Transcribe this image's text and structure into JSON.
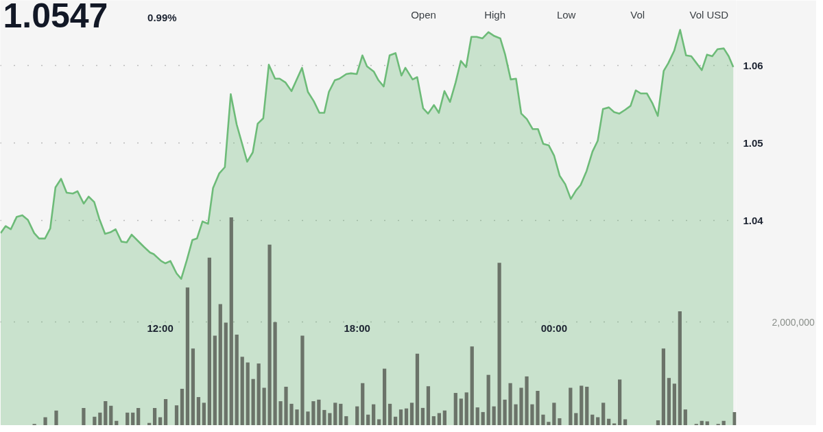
{
  "chart_data": {
    "type": "area",
    "title": "1.0547",
    "subtitle": "0.99%",
    "annotations": [
      "Open",
      "High",
      "Low",
      "Vol",
      "Vol USD"
    ],
    "xlim": [
      7.13,
      29.55
    ],
    "xticks": [
      {
        "value": 12,
        "label": "12:00"
      },
      {
        "value": 18,
        "label": "18:00"
      },
      {
        "value": 24,
        "label": "00:00"
      }
    ],
    "ylim": [
      1.0136,
      1.0684
    ],
    "yticks": [
      1.04,
      1.05,
      1.06
    ],
    "y2lim": [
      0,
      8230000
    ],
    "y2ticks": [
      {
        "value": 2000000,
        "label": "2,000,000"
      }
    ],
    "grid": "y",
    "series": [
      {
        "color": "#6dbb78",
        "x": [
          7.14,
          7.29,
          7.45,
          7.63,
          7.8,
          7.97,
          8.16,
          8.31,
          8.49,
          8.65,
          8.81,
          8.98,
          9.15,
          9.34,
          9.48,
          9.67,
          9.82,
          9.99,
          10.14,
          10.32,
          10.48,
          10.64,
          10.82,
          10.98,
          11.13,
          11.32,
          11.51,
          11.69,
          11.8,
          12.03,
          12.16,
          12.31,
          12.5,
          12.64,
          12.81,
          12.98,
          13.12,
          13.29,
          13.46,
          13.61,
          13.8,
          13.97,
          14.15,
          14.33,
          14.65,
          14.82,
          14.97,
          15.14,
          15.31,
          15.5,
          15.64,
          15.82,
          16.0,
          16.32,
          16.5,
          16.68,
          16.85,
          17.0,
          17.14,
          17.32,
          17.46,
          17.67,
          17.81,
          17.99,
          18.16,
          18.3,
          18.51,
          18.65,
          18.81,
          18.99,
          19.17,
          19.35,
          19.47,
          19.69,
          19.83,
          20.01,
          20.16,
          20.34,
          20.49,
          20.66,
          20.83,
          21.0,
          21.16,
          21.32,
          21.48,
          21.64,
          21.82,
          22.0,
          22.18,
          22.36,
          22.51,
          22.68,
          22.84,
          23.0,
          23.17,
          23.35,
          23.51,
          23.67,
          23.84,
          24.0,
          24.17,
          24.34,
          24.51,
          24.67,
          24.81,
          24.99,
          25.17,
          25.33,
          25.49,
          25.67,
          25.83,
          25.99,
          26.17,
          26.33,
          26.49,
          26.64,
          26.83,
          27.0,
          27.16,
          27.34,
          27.48,
          27.66,
          27.84,
          28.02,
          28.18,
          28.34,
          28.5,
          28.66,
          28.82,
          28.98,
          29.17,
          29.32,
          29.46
        ],
        "values": [
          1.0384,
          1.0393,
          1.0389,
          1.0405,
          1.0407,
          1.0401,
          1.0384,
          1.0377,
          1.0377,
          1.039,
          1.0443,
          1.0454,
          1.0436,
          1.0435,
          1.0438,
          1.0422,
          1.0431,
          1.0424,
          1.0403,
          1.0383,
          1.0385,
          1.0389,
          1.0373,
          1.0372,
          1.0382,
          1.0374,
          1.0366,
          1.0359,
          1.0357,
          1.0348,
          1.0345,
          1.0348,
          1.0332,
          1.0325,
          1.0349,
          1.0375,
          1.0377,
          1.0399,
          1.0396,
          1.0442,
          1.0461,
          1.0469,
          1.0563,
          1.0524,
          1.0476,
          1.0488,
          1.0525,
          1.0532,
          1.0601,
          1.0583,
          1.0583,
          1.0578,
          1.0567,
          1.0597,
          1.0566,
          1.0554,
          1.0539,
          1.0539,
          1.0566,
          1.0581,
          1.0583,
          1.0589,
          1.059,
          1.0589,
          1.0613,
          1.0599,
          1.0592,
          1.0581,
          1.0573,
          1.0613,
          1.0616,
          1.0587,
          1.0597,
          1.0582,
          1.0585,
          1.0545,
          1.0538,
          1.0549,
          1.0539,
          1.0567,
          1.0553,
          1.0578,
          1.0606,
          1.0598,
          1.0637,
          1.0637,
          1.0635,
          1.0643,
          1.0638,
          1.0635,
          1.0614,
          1.0582,
          1.0583,
          1.0538,
          1.0531,
          1.0518,
          1.0518,
          1.0499,
          1.0497,
          1.0484,
          1.0458,
          1.0447,
          1.0428,
          1.0439,
          1.0446,
          1.0464,
          1.0489,
          1.0503,
          1.0544,
          1.0546,
          1.054,
          1.0538,
          1.0543,
          1.0548,
          1.0568,
          1.0564,
          1.0564,
          1.0551,
          1.0535,
          1.0593,
          1.0603,
          1.0619,
          1.0646,
          1.0613,
          1.0612,
          1.0603,
          1.0594,
          1.0614,
          1.0612,
          1.0621,
          1.0622,
          1.0612,
          1.0598
        ]
      },
      {
        "type": "bar",
        "axis": "y2",
        "color": "#6b7369",
        "x": [
          8.167,
          8.333,
          8.5,
          8.667,
          8.833,
          9,
          9.167,
          9.333,
          9.5,
          9.667,
          9.833,
          10,
          10.167,
          10.333,
          10.5,
          10.667,
          10.833,
          11,
          11.167,
          11.333,
          11.5,
          11.667,
          11.833,
          12,
          12.167,
          12.333,
          12.5,
          12.667,
          12.833,
          13,
          13.167,
          13.333,
          13.5,
          13.667,
          13.833,
          14,
          14.167,
          14.333,
          14.5,
          14.667,
          14.833,
          15,
          15.167,
          15.333,
          15.5,
          15.667,
          15.833,
          16,
          16.167,
          16.333,
          16.5,
          16.667,
          16.833,
          17,
          17.167,
          17.333,
          17.5,
          17.667,
          17.833,
          18,
          18.167,
          18.333,
          18.5,
          18.667,
          18.833,
          19,
          19.167,
          19.333,
          19.5,
          19.667,
          19.833,
          20,
          20.167,
          20.333,
          20.5,
          20.667,
          20.833,
          21,
          21.167,
          21.333,
          21.5,
          21.667,
          21.833,
          22,
          22.167,
          22.333,
          22.5,
          22.667,
          22.833,
          23,
          23.167,
          23.333,
          23.5,
          23.667,
          23.833,
          24,
          24.167,
          24.333,
          24.5,
          24.667,
          24.833,
          25,
          25.167,
          25.333,
          25.5,
          25.667,
          25.833,
          26,
          26.167,
          26.333,
          26.5,
          26.667,
          26.833,
          27,
          27.167,
          27.333,
          27.5,
          27.667,
          27.833,
          28,
          28.167,
          28.333,
          28.5,
          28.667,
          28.833,
          29,
          29.167,
          29.333,
          29.5
        ],
        "values": [
          30000,
          null,
          160000,
          null,
          290000,
          null,
          null,
          null,
          null,
          340000,
          null,
          170000,
          250000,
          470000,
          380000,
          90000,
          null,
          250000,
          250000,
          340000,
          null,
          50000,
          340000,
          160000,
          510000,
          null,
          390000,
          710000,
          2670000,
          1490000,
          550000,
          440000,
          3250000,
          1740000,
          2350000,
          1990000,
          4030000,
          1760000,
          1330000,
          1220000,
          900000,
          1200000,
          730000,
          3500000,
          2000000,
          470000,
          750000,
          420000,
          310000,
          1740000,
          270000,
          470000,
          500000,
          300000,
          240000,
          440000,
          420000,
          180000,
          null,
          370000,
          820000,
          210000,
          410000,
          120000,
          1100000,
          420000,
          170000,
          310000,
          330000,
          440000,
          1390000,
          340000,
          760000,
          180000,
          240000,
          290000,
          null,
          630000,
          520000,
          640000,
          1530000,
          350000,
          260000,
          980000,
          370000,
          3150000,
          500000,
          820000,
          410000,
          730000,
          950000,
          410000,
          670000,
          210000,
          70000,
          440000,
          140000,
          null,
          730000,
          240000,
          770000,
          750000,
          210000,
          160000,
          440000,
          130000,
          40000,
          890000,
          120000,
          null,
          null,
          null,
          null,
          null,
          100000,
          1490000,
          920000,
          810000,
          2210000,
          310000,
          null,
          30000,
          90000,
          80000,
          null,
          30000,
          90000,
          null,
          260000
        ]
      }
    ]
  }
}
